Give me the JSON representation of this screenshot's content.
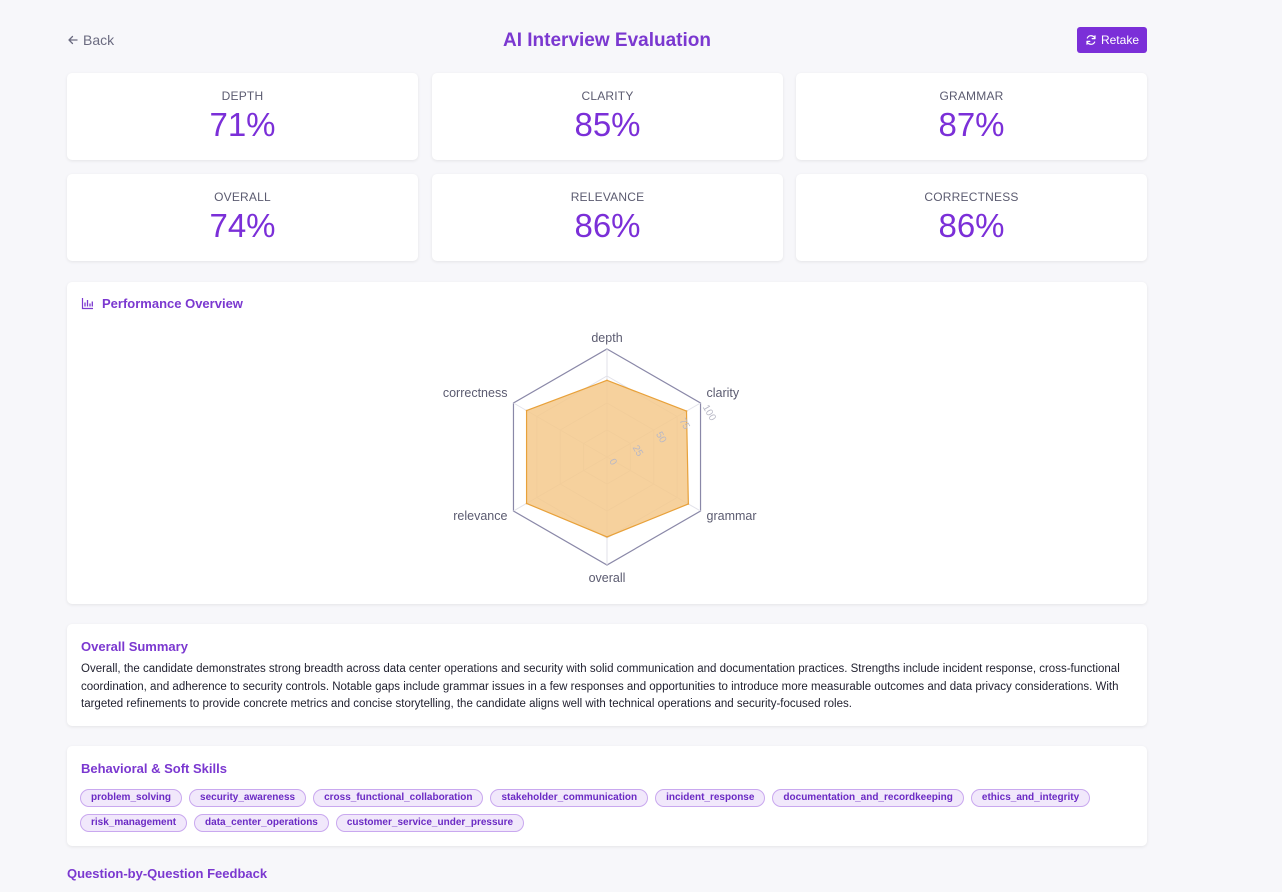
{
  "header": {
    "back_label": "Back",
    "title": "AI Interview Evaluation",
    "retake_label": "Retake"
  },
  "metrics": [
    {
      "label": "DEPTH",
      "value": "71%"
    },
    {
      "label": "CLARITY",
      "value": "85%"
    },
    {
      "label": "GRAMMAR",
      "value": "87%"
    },
    {
      "label": "OVERALL",
      "value": "74%"
    },
    {
      "label": "RELEVANCE",
      "value": "86%"
    },
    {
      "label": "CORRECTNESS",
      "value": "86%"
    }
  ],
  "performance": {
    "title": "Performance Overview"
  },
  "chart_data": {
    "type": "radar",
    "categories": [
      "depth",
      "clarity",
      "grammar",
      "overall",
      "relevance",
      "correctness"
    ],
    "values": [
      71,
      85,
      87,
      74,
      86,
      86
    ],
    "radial_ticks": [
      "0",
      "25",
      "50",
      "75",
      "100"
    ],
    "range": [
      0,
      100
    ],
    "fill_color": "#f5c98c",
    "stroke_color": "#e8a13a"
  },
  "summary": {
    "title": "Overall Summary",
    "text": "Overall, the candidate demonstrates strong breadth across data center operations and security with solid communication and documentation practices. Strengths include incident response, cross-functional coordination, and adherence to security controls. Notable gaps include grammar issues in a few responses and opportunities to introduce more measurable outcomes and data privacy considerations. With targeted refinements to provide concrete metrics and concise storytelling, the candidate aligns well with technical operations and security-focused roles."
  },
  "skills": {
    "title": "Behavioral & Soft Skills",
    "items": [
      "problem_solving",
      "security_awareness",
      "cross_functional_collaboration",
      "stakeholder_communication",
      "incident_response",
      "documentation_and_recordkeeping",
      "ethics_and_integrity",
      "risk_management",
      "data_center_operations",
      "customer_service_under_pressure"
    ]
  },
  "questions": {
    "title": "Question-by-Question Feedback"
  },
  "colors": {
    "accent": "#7b2fd8",
    "background": "#f7f7fa"
  }
}
